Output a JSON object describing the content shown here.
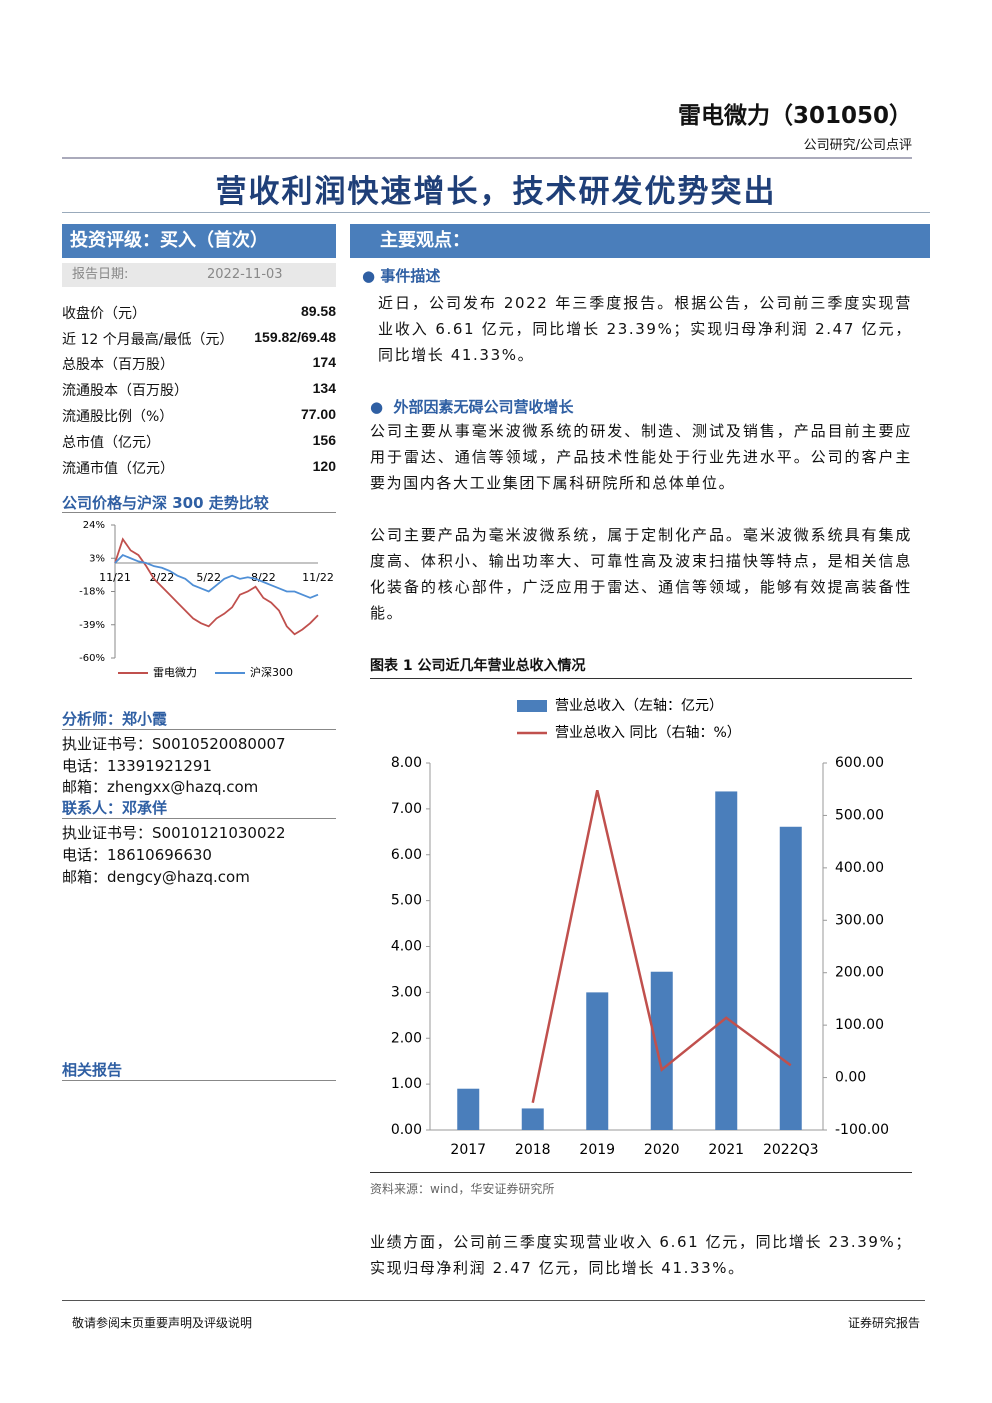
{
  "header": {
    "company": "雷电微力（301050）",
    "category": "公司研究/公司点评",
    "title": "营收利润快速增长，技术研发优势突出"
  },
  "sidebar": {
    "rating": "投资评级：买入（首次）",
    "date_label": "报告日期:",
    "date": "2022-11-03",
    "stats": [
      [
        "收盘价（元）",
        "89.58"
      ],
      [
        "近 12 个月最高/最低（元）",
        "159.82/69.48"
      ],
      [
        "总股本（百万股）",
        "174"
      ],
      [
        "流通股本（百万股）",
        "134"
      ],
      [
        "流通股比例（%）",
        "77.00"
      ],
      [
        "总市值（亿元）",
        "156"
      ],
      [
        "流通市值（亿元）",
        "120"
      ]
    ],
    "chart_title": "公司价格与沪深 300 走势比较",
    "analyst": {
      "heading": "分析师：郑小霞",
      "lines": [
        "执业证书号：S0010520080007",
        "电话：13391921291",
        "邮箱：zhengxx@hazq.com"
      ]
    },
    "contact": {
      "heading": "联系人：邓承佯",
      "lines": [
        "执业证书号：S0010121030022",
        "电话：18610696630",
        "邮箱：dengcy@hazq.com"
      ]
    },
    "related": "相关报告"
  },
  "main": {
    "heading": "主要观点：",
    "sections": [
      {
        "title": "事件描述",
        "paragraphs": [
          "近日，公司发布 2022 年三季度报告。根据公告，公司前三季度实现营业收入 6.61 亿元，同比增长 23.39%；实现归母净利润 2.47 亿元，同比增长 41.33%。"
        ]
      },
      {
        "title": "外部因素无碍公司营收增长",
        "paragraphs": [
          "公司主要从事毫米波微系统的研发、制造、测试及销售，产品目前主要应用于雷达、通信等领域，产品技术性能处于行业先进水平。公司的客户主要为国内各大工业集团下属科研院所和总体单位。",
          "公司主要产品为毫米波微系统，属于定制化产品。毫米波微系统具有集成度高、体积小、输出功率大、可靠性高及波束扫描快等特点，是相关信息化装备的核心部件，广泛应用于雷达、通信等领域，能够有效提高装备性能。"
        ]
      }
    ],
    "figure_title": "图表 1 公司近几年营业总收入情况",
    "source": "资料来源：wind，华安证券研究所",
    "closing": "业绩方面，公司前三季度实现营业收入 6.61 亿元，同比增长 23.39%；实现归母净利润 2.47 亿元，同比增长 41.33%。"
  },
  "footer": {
    "left": "敬请参阅末页重要声明及评级说明",
    "right": "证券研究报告"
  },
  "chart_data": [
    {
      "type": "line",
      "categories": [
        "11/21",
        null,
        null,
        null,
        null,
        null,
        "2/22",
        null,
        null,
        null,
        null,
        null,
        "5/22",
        null,
        null,
        null,
        null,
        null,
        null,
        "8/22",
        null,
        null,
        null,
        null,
        null,
        null,
        "11/22"
      ],
      "series": [
        {
          "name": "雷电微力",
          "color": "#c0504d",
          "values": [
            0,
            15,
            8,
            5,
            -2,
            -10,
            -15,
            -20,
            -25,
            -30,
            -35,
            -38,
            -40,
            -35,
            -32,
            -28,
            -20,
            -18,
            -15,
            -22,
            -25,
            -30,
            -40,
            -45,
            -42,
            -38,
            -33
          ]
        },
        {
          "name": "沪深300",
          "color": "#4f8fd6",
          "values": [
            0,
            5,
            3,
            1,
            0,
            -2,
            -3,
            -5,
            -8,
            -10,
            -14,
            -16,
            -18,
            -14,
            -10,
            -8,
            -10,
            -9,
            -10,
            -12,
            -14,
            -16,
            -18,
            -18,
            -20,
            -22,
            -20
          ]
        }
      ],
      "ylim": [
        -60,
        24
      ],
      "yticks": [
        {
          "value": 24,
          "label": "24%"
        },
        {
          "value": 3,
          "label": "3%"
        },
        {
          "value": -18,
          "label": "-18%"
        },
        {
          "value": -39,
          "label": "-39%"
        },
        {
          "value": -60,
          "label": "-60%"
        }
      ]
    },
    {
      "type": "bar",
      "categories": [
        "2017",
        "2018",
        "2019",
        "2020",
        "2021",
        "2022Q3"
      ],
      "series": [
        {
          "name": "营业总收入（左轴：亿元）",
          "type": "bar",
          "color": "#4a7ebb",
          "values": [
            0.9,
            0.47,
            3.0,
            3.45,
            7.38,
            6.61
          ]
        },
        {
          "name": "营业总收入 同比（右轴：%）",
          "type": "line",
          "axis": "y2",
          "color": "#c0504d",
          "values": [
            null,
            -48,
            548,
            15,
            114,
            23.39
          ]
        }
      ],
      "ylim": [
        0,
        8
      ],
      "yticks": [
        {
          "value": 0,
          "label": "0.00"
        },
        {
          "value": 1,
          "label": "1.00"
        },
        {
          "value": 2,
          "label": "2.00"
        },
        {
          "value": 3,
          "label": "3.00"
        },
        {
          "value": 4,
          "label": "4.00"
        },
        {
          "value": 5,
          "label": "5.00"
        },
        {
          "value": 6,
          "label": "6.00"
        },
        {
          "value": 7,
          "label": "7.00"
        },
        {
          "value": 8,
          "label": "8.00"
        }
      ],
      "y2lim": [
        -100,
        600
      ],
      "y2ticks": [
        {
          "value": -100,
          "label": "-100.00"
        },
        {
          "value": 0,
          "label": "0.00"
        },
        {
          "value": 100,
          "label": "100.00"
        },
        {
          "value": 200,
          "label": "200.00"
        },
        {
          "value": 300,
          "label": "300.00"
        },
        {
          "value": 400,
          "label": "400.00"
        },
        {
          "value": 500,
          "label": "500.00"
        },
        {
          "value": 600,
          "label": "600.00"
        }
      ]
    }
  ]
}
